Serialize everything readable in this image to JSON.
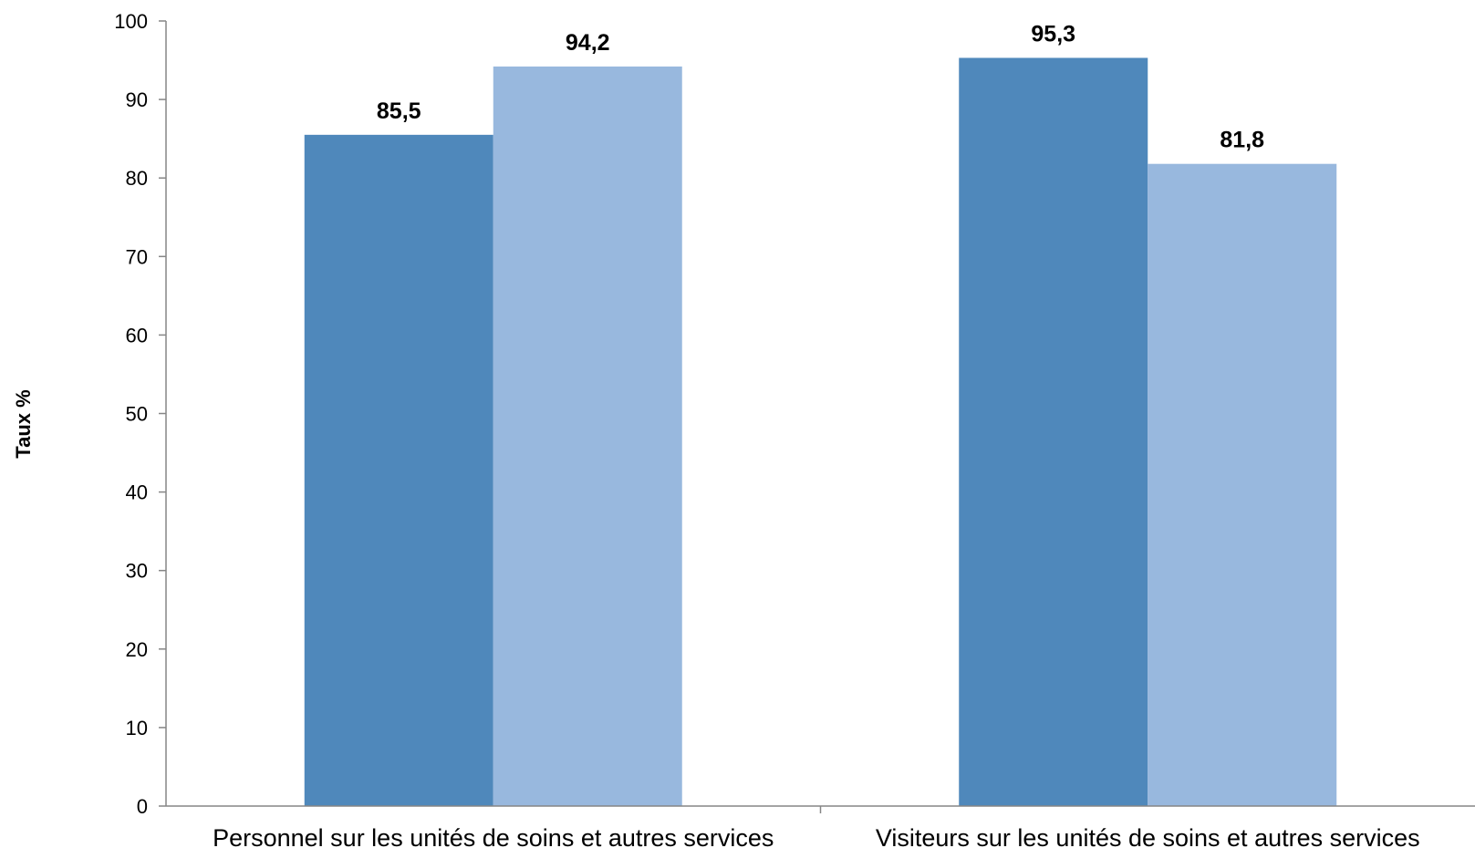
{
  "chart_data": {
    "type": "bar",
    "categories": [
      "Personnel sur les unités de soins et autres services",
      "Visiteurs sur les unités de soins et autres services"
    ],
    "series": [
      {
        "values": [
          85.5,
          95.3
        ],
        "labels": [
          "85,5",
          "95,3"
        ],
        "color": "#4f88bb"
      },
      {
        "values": [
          94.2,
          81.8
        ],
        "labels": [
          "94,2",
          "81,8"
        ],
        "color": "#98b8de"
      }
    ],
    "title": "",
    "xlabel": "",
    "ylabel": "Taux %",
    "ylim": [
      0,
      100
    ],
    "yticks": [
      0,
      10,
      20,
      30,
      40,
      50,
      60,
      70,
      80,
      90,
      100
    ],
    "grid": false,
    "legend": "none",
    "axis_color": "#868686"
  }
}
